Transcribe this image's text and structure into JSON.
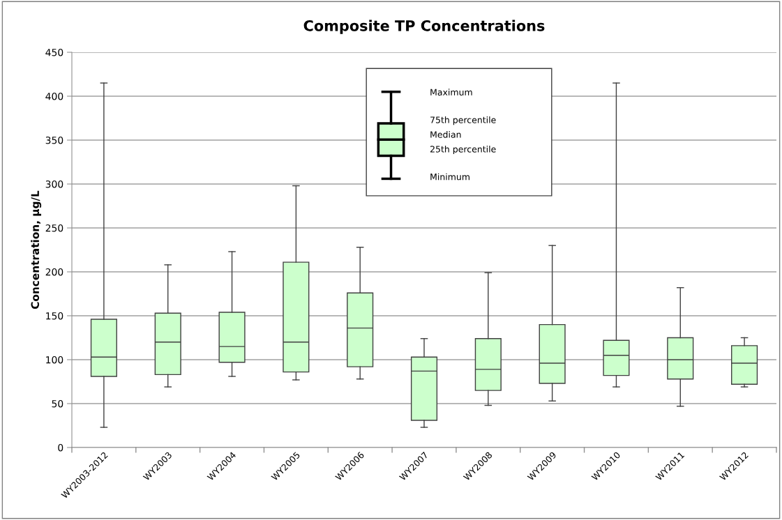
{
  "chart_data": {
    "type": "box",
    "title": "Composite TP Concentrations",
    "ylabel": "Concentration, µg/L",
    "categories": [
      "WY2003-2012",
      "WY2003",
      "WY2004",
      "WY2005",
      "WY2006",
      "WY2007",
      "WY2008",
      "WY2009",
      "WY2010",
      "WY2011",
      "WY2012"
    ],
    "color": "#ccffcc",
    "boxes": [
      {
        "low": 23,
        "q1": 81,
        "median": 103,
        "q3": 146,
        "high": 415
      },
      {
        "low": 69,
        "q1": 83,
        "median": 120,
        "q3": 153,
        "high": 208
      },
      {
        "low": 81,
        "q1": 97,
        "median": 115,
        "q3": 154,
        "high": 223
      },
      {
        "low": 77,
        "q1": 86,
        "median": 120,
        "q3": 211,
        "high": 298
      },
      {
        "low": 78,
        "q1": 92,
        "median": 136,
        "q3": 176,
        "high": 228
      },
      {
        "low": 23,
        "q1": 31,
        "median": 87,
        "q3": 103,
        "high": 124
      },
      {
        "low": 48,
        "q1": 65,
        "median": 89,
        "q3": 124,
        "high": 199
      },
      {
        "low": 53,
        "q1": 73,
        "median": 96,
        "q3": 140,
        "high": 230
      },
      {
        "low": 69,
        "q1": 82,
        "median": 105,
        "q3": 122,
        "high": 415
      },
      {
        "low": 47,
        "q1": 78,
        "median": 100,
        "q3": 125,
        "high": 182
      },
      {
        "low": 69,
        "q1": 72,
        "median": 96,
        "q3": 116,
        "high": 125
      }
    ],
    "ylim": [
      0,
      450
    ],
    "yticks": [
      0,
      50,
      100,
      150,
      200,
      250,
      300,
      350,
      400,
      450
    ],
    "grid": "y",
    "annotations": [
      "Maximum",
      "75th percentile",
      "Median",
      "25th percentile",
      "Minimum"
    ]
  }
}
